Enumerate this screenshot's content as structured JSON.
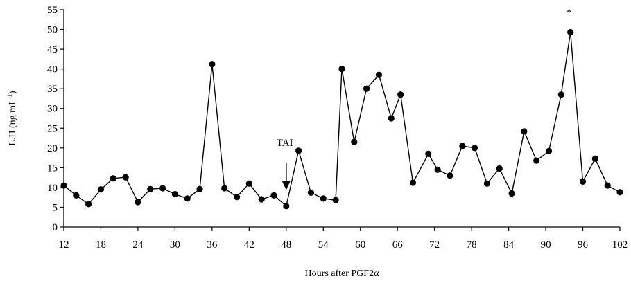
{
  "chart_data": {
    "type": "line",
    "title": "",
    "xlabel": "Hours after PGF2α",
    "ylabel": {
      "main": "L.H (ng mL",
      "sup": "-1",
      "close": ")"
    },
    "xlim": [
      12,
      102
    ],
    "ylim": [
      0,
      55
    ],
    "xticks": [
      "12",
      "18",
      "24",
      "30",
      "36",
      "42",
      "48",
      "54",
      "60",
      "66",
      "72",
      "78",
      "84",
      "90",
      "96",
      "102"
    ],
    "yticks": [
      "0",
      "5",
      "10",
      "15",
      "20",
      "25",
      "30",
      "35",
      "40",
      "45",
      "50",
      "55"
    ],
    "grid": false,
    "series": [
      {
        "color": "#000000",
        "x": [
          12,
          14,
          16,
          18,
          20,
          22,
          24,
          26,
          28,
          30,
          32,
          34,
          36,
          38,
          40,
          42,
          44,
          46,
          48,
          50,
          52,
          54,
          56,
          57,
          59,
          61,
          63,
          65,
          66.5,
          68.5,
          71,
          72.5,
          74.5,
          76.5,
          78.5,
          80.5,
          82.5,
          84.5,
          86.5,
          88.5,
          90.5,
          92.5,
          94,
          96,
          98,
          100,
          102
        ],
        "y": [
          10.5,
          8,
          5.8,
          9.5,
          12.3,
          12.6,
          6.3,
          9.6,
          9.8,
          8.3,
          7.2,
          9.6,
          41.2,
          9.8,
          7.6,
          11,
          7,
          8,
          5.3,
          19.3,
          8.7,
          7.2,
          6.8,
          40,
          21.5,
          35,
          38.5,
          27.5,
          33.5,
          11.2,
          18.5,
          14.5,
          13,
          20.5,
          20,
          11,
          14.8,
          8.5,
          24.2,
          16.8,
          19.2,
          33.5,
          49.3,
          11.5,
          17.3,
          10.5,
          8.8
        ]
      }
    ],
    "annotations": [
      {
        "text": "TAI",
        "x": 48,
        "y": 20.5,
        "arrow_from": 16.3,
        "arrow_to": 9.7
      },
      {
        "text": "*",
        "x": 94,
        "y": 53.5
      }
    ]
  }
}
